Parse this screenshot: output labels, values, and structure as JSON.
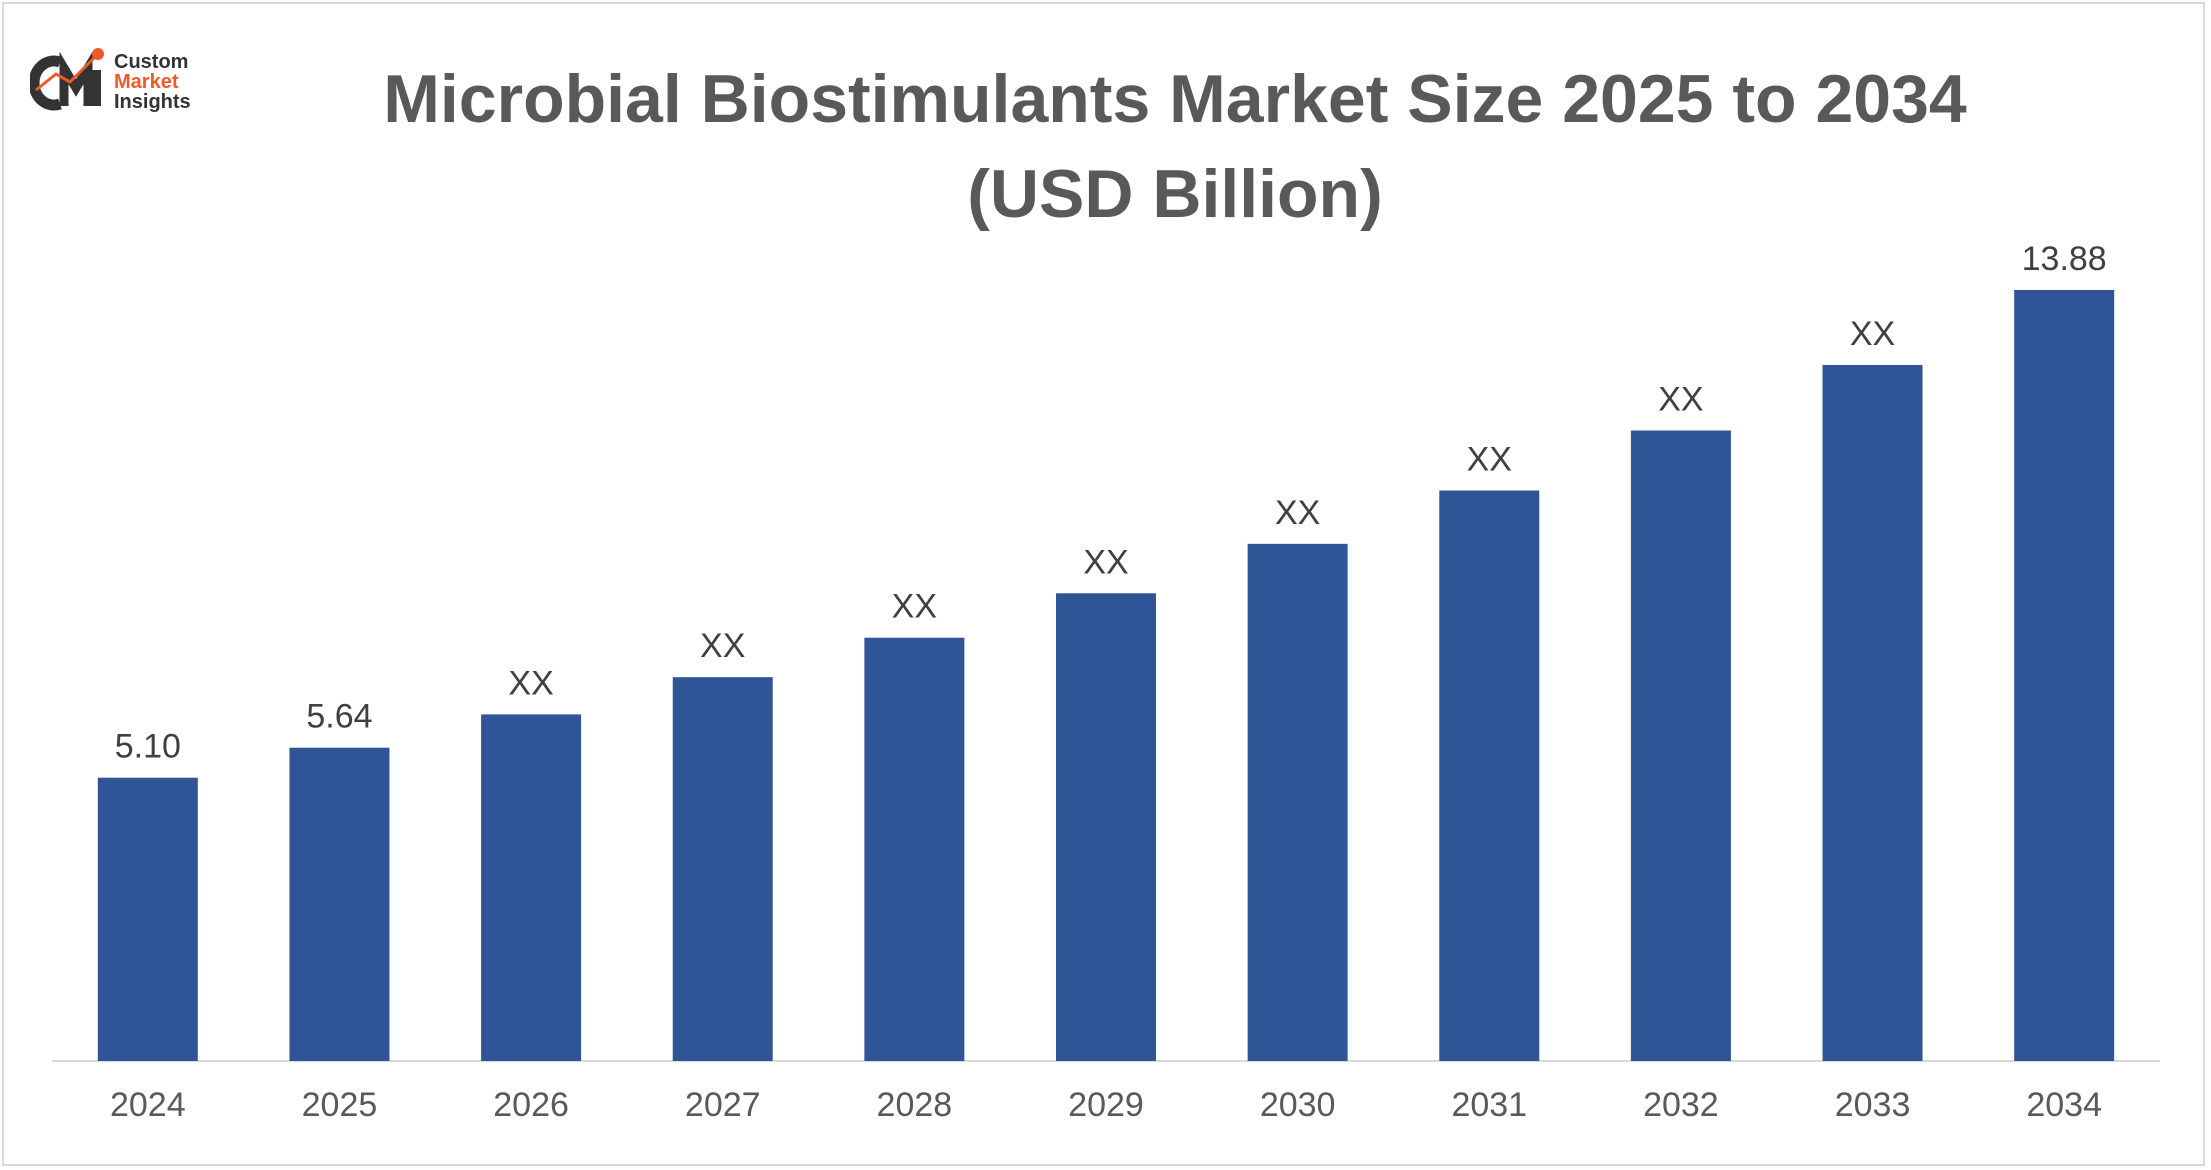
{
  "title_line1": "Microbial Biostimulants Market Size 2025 to 2034",
  "title_line2": "(USD Billion)",
  "logo": {
    "line1": "Custom",
    "line2": "Market",
    "line3": "Insights",
    "mark_text": "CMI",
    "icon": "cmi-logo-icon"
  },
  "colors": {
    "bar": "#2f5597",
    "text": "#404040",
    "title": "#595959",
    "axis": "#d9d9d9",
    "logo_accent": "#f05a28"
  },
  "chart_data": {
    "type": "bar",
    "title": "Microbial Biostimulants Market Size 2025 to 2034 (USD Billion)",
    "categories": [
      "2024",
      "2025",
      "2026",
      "2027",
      "2028",
      "2029",
      "2030",
      "2031",
      "2032",
      "2033",
      "2034"
    ],
    "values": [
      5.1,
      5.64,
      6.24,
      6.91,
      7.62,
      8.42,
      9.31,
      10.27,
      11.35,
      12.53,
      13.88
    ],
    "data_labels": [
      "5.10",
      "5.64",
      "XX",
      "XX",
      "XX",
      "XX",
      "XX",
      "XX",
      "XX",
      "XX",
      "13.88"
    ],
    "xlabel": "",
    "ylabel": "",
    "ylim": [
      0,
      15.5
    ],
    "grid": false,
    "legend": "none"
  }
}
